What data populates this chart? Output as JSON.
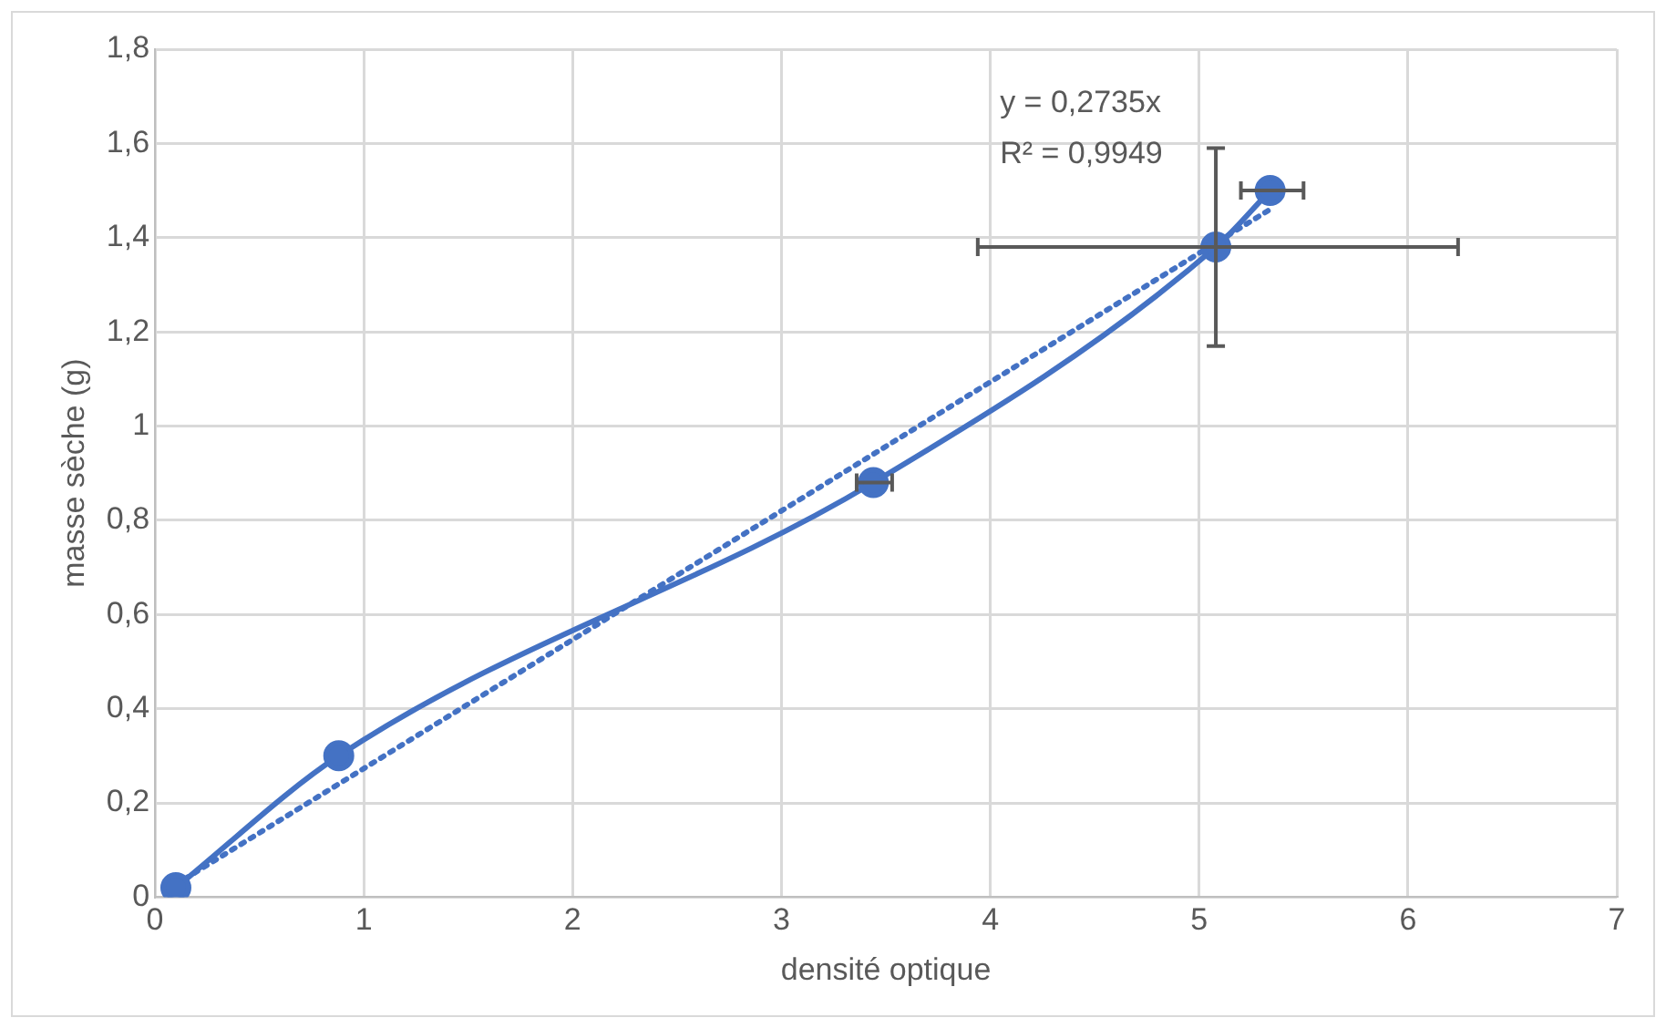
{
  "chart_data": {
    "type": "line",
    "xlabel": "densité optique",
    "ylabel": "masse sèche (g)",
    "xlim": [
      0,
      7
    ],
    "xticks": [
      0,
      1,
      2,
      3,
      4,
      5,
      6,
      7
    ],
    "ylim": [
      0,
      1.8
    ],
    "yticks": [
      {
        "value": 0,
        "label": "0"
      },
      {
        "value": 0.2,
        "label": "0,2"
      },
      {
        "value": 0.4,
        "label": "0,4"
      },
      {
        "value": 0.6,
        "label": "0,6"
      },
      {
        "value": 0.8,
        "label": "0,8"
      },
      {
        "value": 1,
        "label": "1"
      },
      {
        "value": 1.2,
        "label": "1,2"
      },
      {
        "value": 1.4,
        "label": "1,4"
      },
      {
        "value": 1.6,
        "label": "1,6"
      },
      {
        "value": 1.8,
        "label": "1,8"
      }
    ],
    "grid": true,
    "legend": false,
    "series": [
      {
        "color": "#4472c4",
        "marker": "circle",
        "line_style": "solid",
        "x": [
          0.1,
          0.88,
          3.44,
          5.08,
          5.34
        ],
        "values": [
          0.02,
          0.3,
          0.88,
          1.38,
          1.5
        ],
        "errors": [
          null,
          null,
          null,
          [
            1.17,
            1.59
          ],
          null
        ],
        "xerrors": [
          null,
          null,
          [
            3.36,
            3.53
          ],
          [
            3.94,
            6.24
          ],
          [
            5.2,
            5.5
          ]
        ]
      },
      {
        "color": "#4472c4",
        "marker": "none",
        "line_style": "dotted",
        "x": [
          0.1,
          5.34
        ],
        "values": [
          0.027,
          1.46
        ]
      }
    ],
    "annotations": [
      "y = 0,2735x",
      "R² = 0,9949"
    ]
  }
}
